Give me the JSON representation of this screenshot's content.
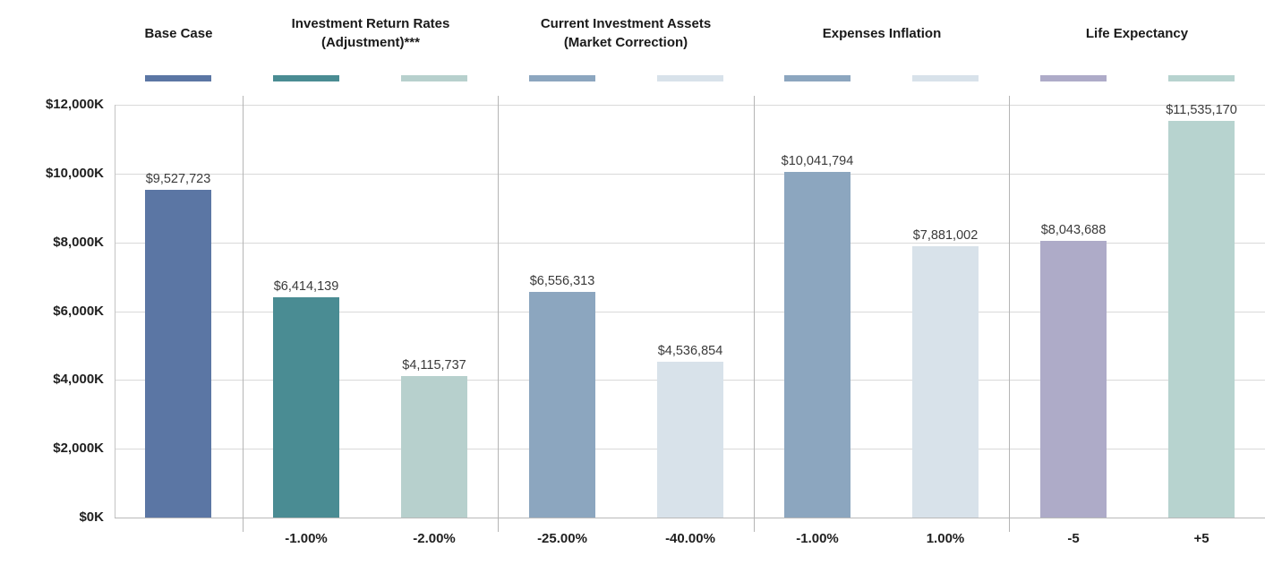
{
  "chart_data": {
    "type": "bar",
    "title": "",
    "xlabel": "",
    "ylabel": "",
    "ylim": [
      0,
      12000000
    ],
    "grid": "horizontal",
    "legend_position": "per-bar swatches above plot",
    "y_axis": {
      "tick_values": [
        0,
        2000000,
        4000000,
        6000000,
        8000000,
        10000000,
        12000000
      ],
      "tick_labels": [
        "$0K",
        "$2,000K",
        "$4,000K",
        "$6,000K",
        "$8,000K",
        "$10,000K",
        "$12,000K"
      ]
    },
    "groups": [
      {
        "id": "base-case",
        "label_lines": [
          "Base Case"
        ],
        "bars": [
          {
            "x_label": "",
            "value": 9527723,
            "display_value": "$9,527,723",
            "color": "#5b76a4"
          }
        ]
      },
      {
        "id": "investment-return-rates",
        "label_lines": [
          "Investment Return Rates",
          "(Adjustment)***"
        ],
        "bars": [
          {
            "x_label": "-1.00%",
            "value": 6414139,
            "display_value": "$6,414,139",
            "color": "#4a8c93"
          },
          {
            "x_label": "-2.00%",
            "value": 4115737,
            "display_value": "$4,115,737",
            "color": "#b7d0cd"
          }
        ]
      },
      {
        "id": "current-investment-assets",
        "label_lines": [
          "Current Investment Assets",
          "(Market Correction)"
        ],
        "bars": [
          {
            "x_label": "-25.00%",
            "value": 6556313,
            "display_value": "$6,556,313",
            "color": "#8ca6bf"
          },
          {
            "x_label": "-40.00%",
            "value": 4536854,
            "display_value": "$4,536,854",
            "color": "#d8e2ea"
          }
        ]
      },
      {
        "id": "expenses-inflation",
        "label_lines": [
          "Expenses Inflation"
        ],
        "bars": [
          {
            "x_label": "-1.00%",
            "value": 10041794,
            "display_value": "$10,041,794",
            "color": "#8ca6bf"
          },
          {
            "x_label": "1.00%",
            "value": 7881002,
            "display_value": "$7,881,002",
            "color": "#d8e2ea"
          }
        ]
      },
      {
        "id": "life-expectancy",
        "label_lines": [
          "Life Expectancy"
        ],
        "bars": [
          {
            "x_label": "-5",
            "value": 8043688,
            "display_value": "$8,043,688",
            "color": "#aeabc8"
          },
          {
            "x_label": "+5",
            "value": 11535170,
            "display_value": "$11,535,170",
            "color": "#b7d3cf"
          }
        ]
      }
    ]
  },
  "style": {
    "gridline_color": "#d9d9d9",
    "baseline_color": "#b9b9b9",
    "axis_line_color": "#c4c4c4",
    "divider_color": "#b5b5b5",
    "value_label_color": "#3a3a3a",
    "axis_label_color": "#1f1f1f",
    "header_color": "#1a1a1a",
    "background": "#ffffff"
  }
}
